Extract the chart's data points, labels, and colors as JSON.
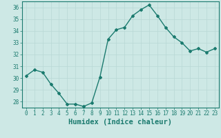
{
  "x": [
    0,
    1,
    2,
    3,
    4,
    5,
    6,
    7,
    8,
    9,
    10,
    11,
    12,
    13,
    14,
    15,
    16,
    17,
    18,
    19,
    20,
    21,
    22,
    23
  ],
  "y": [
    30.2,
    30.7,
    30.5,
    29.5,
    28.7,
    27.8,
    27.8,
    27.6,
    27.9,
    30.1,
    33.3,
    34.1,
    34.3,
    35.3,
    35.8,
    36.2,
    35.3,
    34.3,
    33.5,
    33.0,
    32.3,
    32.5,
    32.2,
    32.5
  ],
  "line_color": "#1a7a6e",
  "bg_color": "#cde8e5",
  "grid_color": "#b8d8d5",
  "xlabel": "Humidex (Indice chaleur)",
  "ylim": [
    27.5,
    36.5
  ],
  "xlim": [
    -0.5,
    23.5
  ],
  "yticks": [
    28,
    29,
    30,
    31,
    32,
    33,
    34,
    35,
    36
  ],
  "xticks": [
    0,
    1,
    2,
    3,
    4,
    5,
    6,
    7,
    8,
    9,
    10,
    11,
    12,
    13,
    14,
    15,
    16,
    17,
    18,
    19,
    20,
    21,
    22,
    23
  ],
  "marker": "D",
  "marker_size": 2.0,
  "line_width": 1.0,
  "tick_label_fontsize": 5.5,
  "xlabel_fontsize": 7.5
}
